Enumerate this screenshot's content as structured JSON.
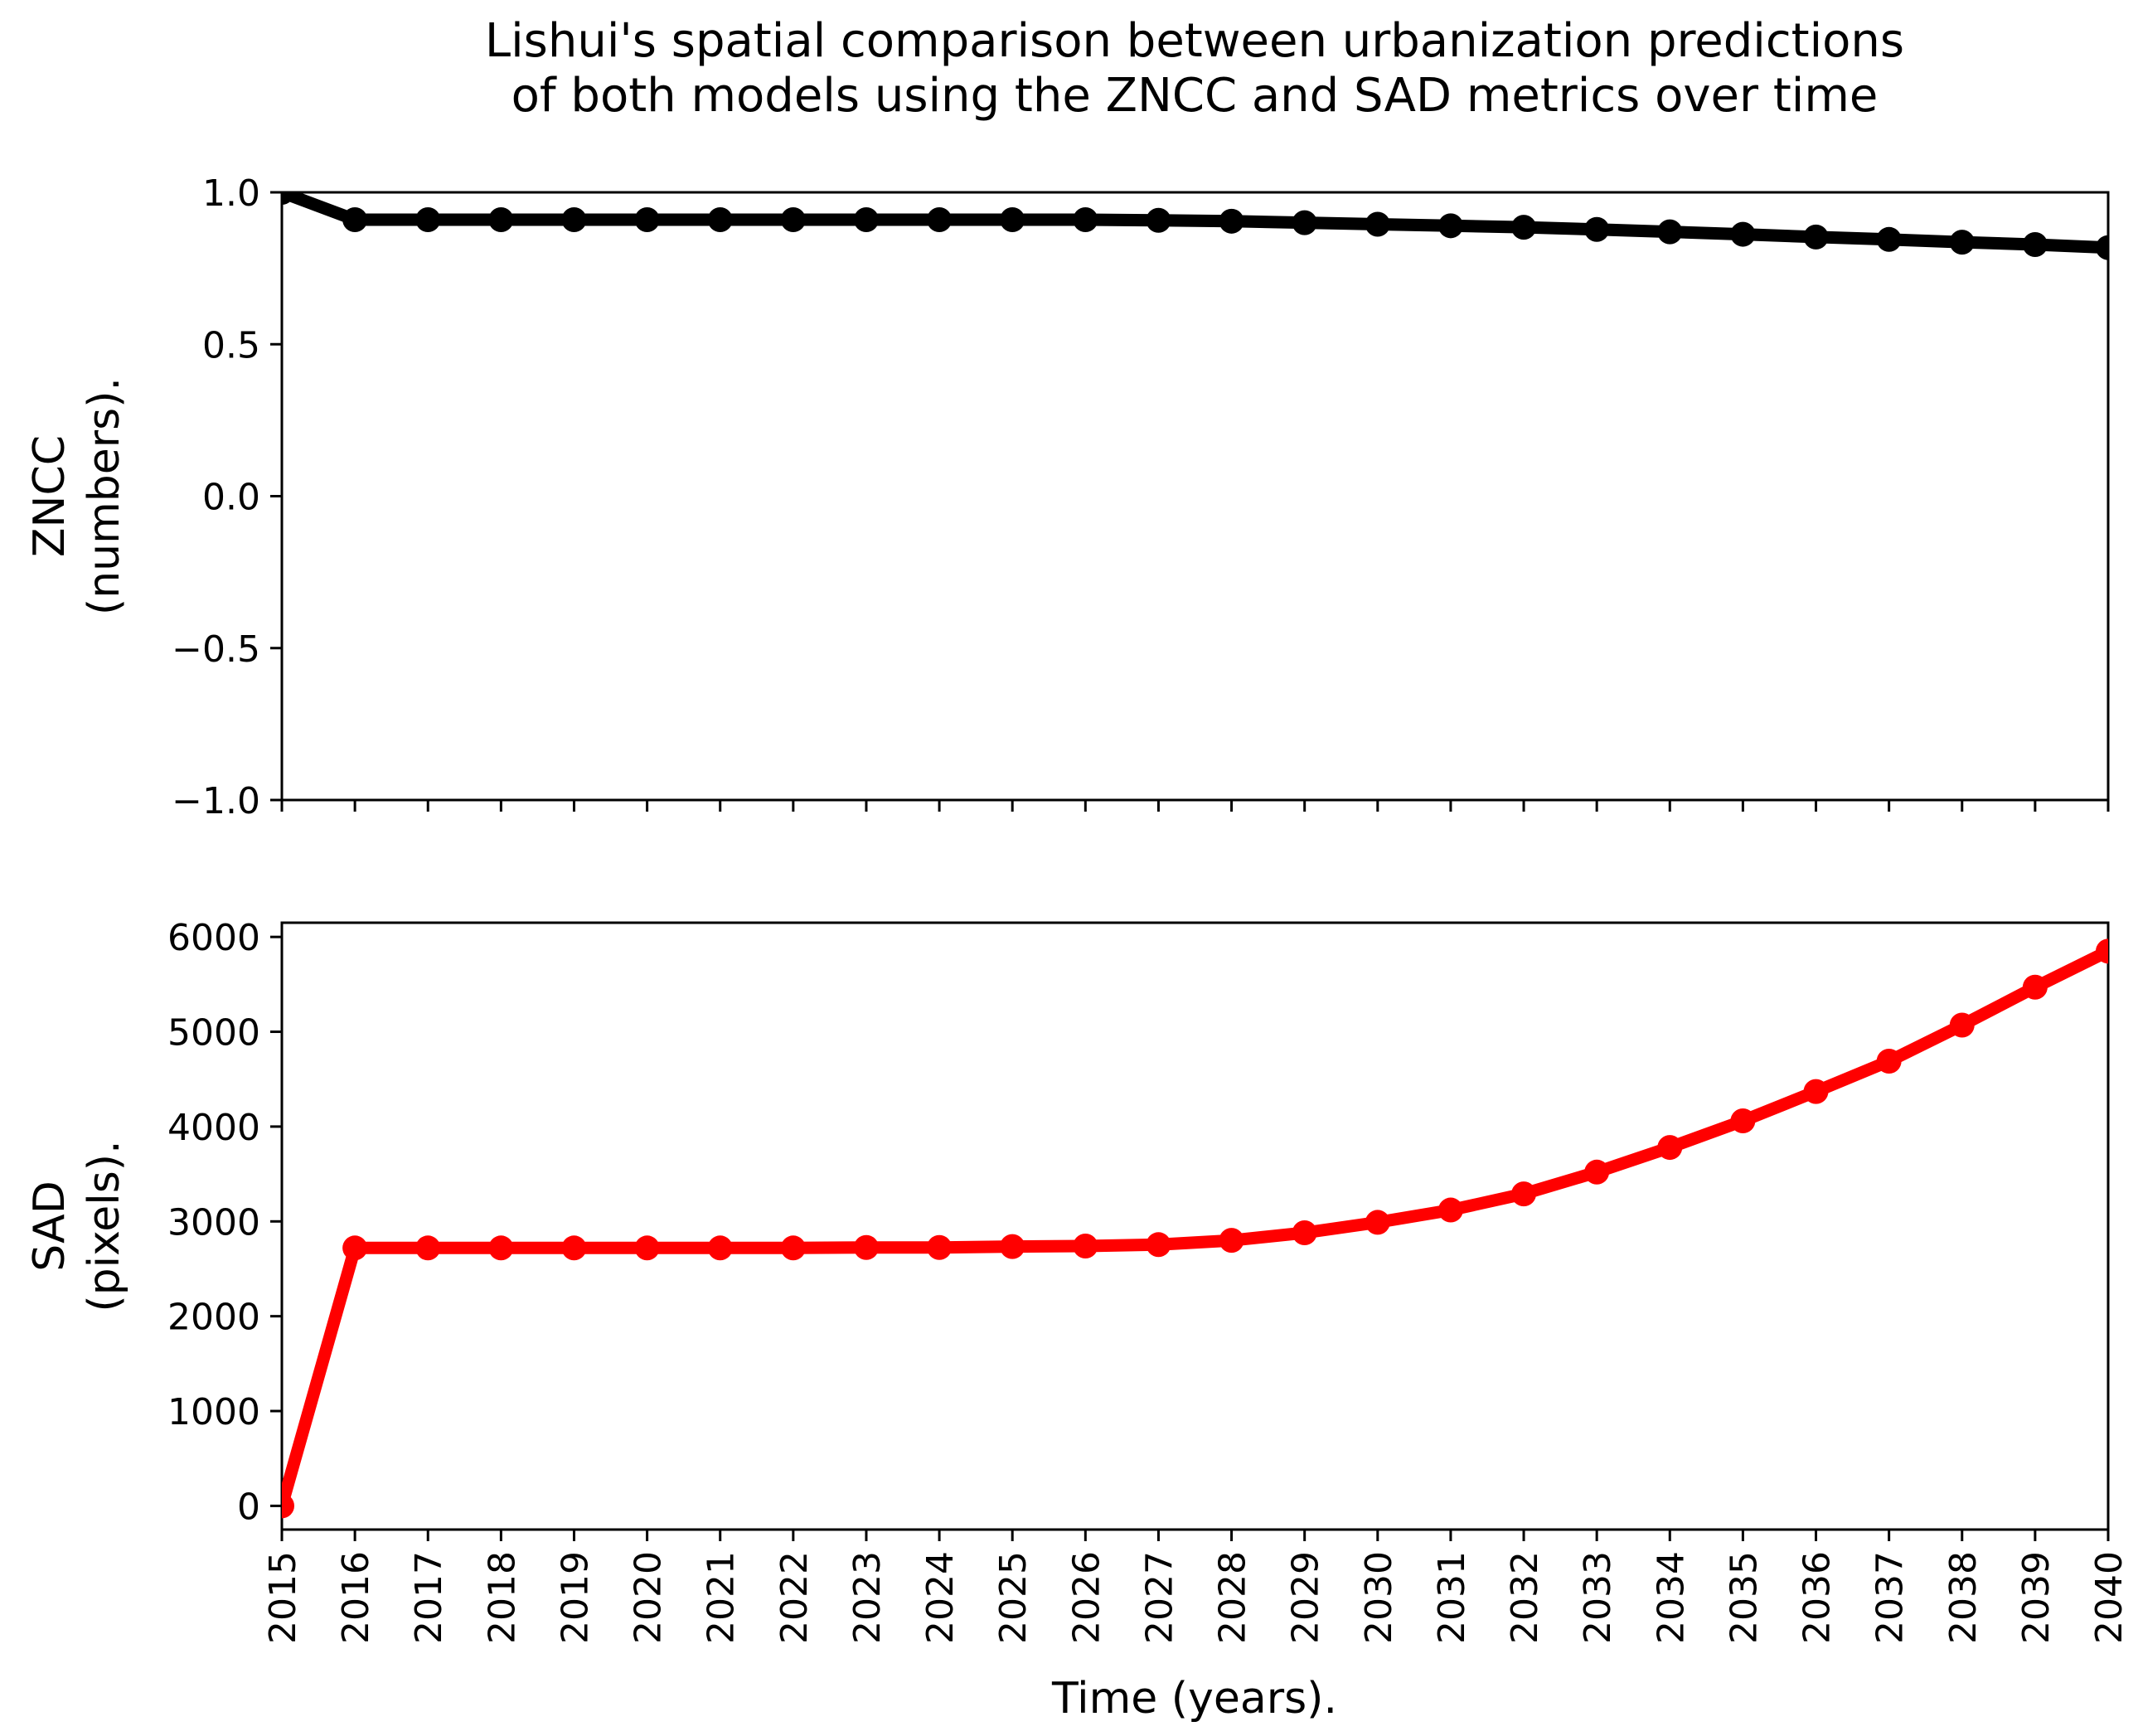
{
  "chart_data": {
    "type": "line",
    "title": "Lishui's spatial comparison between urbanization predictions of both models using the ZNCC and SAD metrics over time",
    "title_lines": [
      "Lishui's spatial comparison between urbanization predictions",
      "of both models using the ZNCC and SAD metrics over time"
    ],
    "xlabel": "Time (years).",
    "x": [
      2015,
      2016,
      2017,
      2018,
      2019,
      2020,
      2021,
      2022,
      2023,
      2024,
      2025,
      2026,
      2027,
      2028,
      2029,
      2030,
      2031,
      2032,
      2033,
      2034,
      2035,
      2036,
      2037,
      2038,
      2039,
      2040
    ],
    "x_tick_labels": [
      "2015",
      "2016",
      "2017",
      "2018",
      "2019",
      "2020",
      "2021",
      "2022",
      "2023",
      "2024",
      "2025",
      "2026",
      "2027",
      "2028",
      "2029",
      "2030",
      "2031",
      "2032",
      "2033",
      "2034",
      "2035",
      "2036",
      "2037",
      "2038",
      "2039",
      "2040"
    ],
    "xlim": [
      2015,
      2040
    ],
    "legend": "none",
    "grid": false,
    "subplots": [
      {
        "name": "ZNCC",
        "ylabel_lines": [
          "ZNCC",
          "(numbers)."
        ],
        "ylim": [
          -1.0,
          1.0
        ],
        "y_ticks": [
          -1.0,
          -0.5,
          0.0,
          0.5,
          1.0
        ],
        "y_tick_labels": [
          "−1.0",
          "−0.5",
          "0.0",
          "0.5",
          "1.0"
        ],
        "color": "#000000",
        "show_x_tick_labels": false,
        "values": [
          1.0,
          0.91,
          0.91,
          0.91,
          0.91,
          0.91,
          0.91,
          0.91,
          0.91,
          0.91,
          0.91,
          0.91,
          0.908,
          0.905,
          0.9,
          0.895,
          0.89,
          0.885,
          0.878,
          0.87,
          0.862,
          0.853,
          0.845,
          0.836,
          0.828,
          0.818
        ]
      },
      {
        "name": "SAD",
        "ylabel_lines": [
          "SAD",
          "(pixels)."
        ],
        "ylim": [
          -250,
          6150
        ],
        "y_ticks": [
          0,
          1000,
          2000,
          3000,
          4000,
          5000,
          6000
        ],
        "y_tick_labels": [
          "0",
          "1000",
          "2000",
          "3000",
          "4000",
          "5000",
          "6000"
        ],
        "color": "#ff0000",
        "show_x_tick_labels": true,
        "values": [
          0,
          2720,
          2720,
          2720,
          2720,
          2720,
          2720,
          2720,
          2725,
          2725,
          2735,
          2740,
          2755,
          2800,
          2880,
          2990,
          3120,
          3290,
          3520,
          3780,
          4060,
          4370,
          4690,
          5070,
          5470,
          5850
        ]
      }
    ]
  }
}
